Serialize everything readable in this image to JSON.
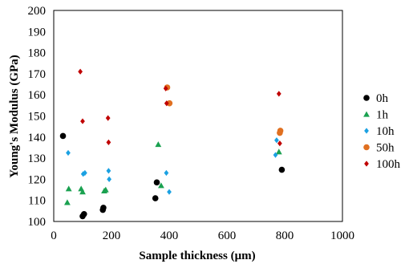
{
  "chart_data": {
    "type": "scatter",
    "title": "",
    "xlabel": "Sample thickness (μm)",
    "ylabel": "Young's Modulus (GPa)",
    "xlim": [
      0,
      1000
    ],
    "ylim": [
      100,
      200
    ],
    "xticks": [
      0,
      200,
      400,
      600,
      800,
      1000
    ],
    "yticks": [
      100,
      110,
      120,
      130,
      140,
      150,
      160,
      170,
      180,
      190,
      200
    ],
    "grid": false,
    "legend_position": "right",
    "series": [
      {
        "name": "0h",
        "marker": "circle",
        "color": "#000000",
        "points": [
          [
            32,
            140.5
          ],
          [
            100,
            102.5
          ],
          [
            105,
            103.5
          ],
          [
            170,
            105.5
          ],
          [
            172,
            106.5
          ],
          [
            352,
            111
          ],
          [
            357,
            118.5
          ],
          [
            790,
            124.5
          ]
        ]
      },
      {
        "name": "1h",
        "marker": "triangle",
        "color": "#1aa150",
        "points": [
          [
            47,
            109
          ],
          [
            52,
            115.5
          ],
          [
            95,
            115.5
          ],
          [
            100,
            114
          ],
          [
            175,
            114.5
          ],
          [
            180,
            115
          ],
          [
            362,
            136.5
          ],
          [
            372,
            117
          ],
          [
            780,
            133
          ]
        ]
      },
      {
        "name": "10h",
        "marker": "diamond",
        "color": "#1ba1e2",
        "points": [
          [
            50,
            132.5
          ],
          [
            102,
            122.5
          ],
          [
            108,
            123
          ],
          [
            190,
            124
          ],
          [
            192,
            120
          ],
          [
            390,
            123
          ],
          [
            400,
            114
          ],
          [
            768,
            131.5
          ],
          [
            772,
            138.5
          ]
        ]
      },
      {
        "name": "50h",
        "marker": "circle",
        "color": "#e07020",
        "points": [
          [
            393,
            163.5
          ],
          [
            401,
            156
          ],
          [
            783,
            142
          ],
          [
            785,
            143
          ]
        ]
      },
      {
        "name": "100h",
        "marker": "diamond",
        "color": "#c00000",
        "points": [
          [
            92,
            171
          ],
          [
            100,
            147.5
          ],
          [
            188,
            149
          ],
          [
            190,
            137.5
          ],
          [
            388,
            163
          ],
          [
            391,
            156
          ],
          [
            780,
            160.5
          ],
          [
            783,
            137
          ]
        ]
      }
    ]
  }
}
